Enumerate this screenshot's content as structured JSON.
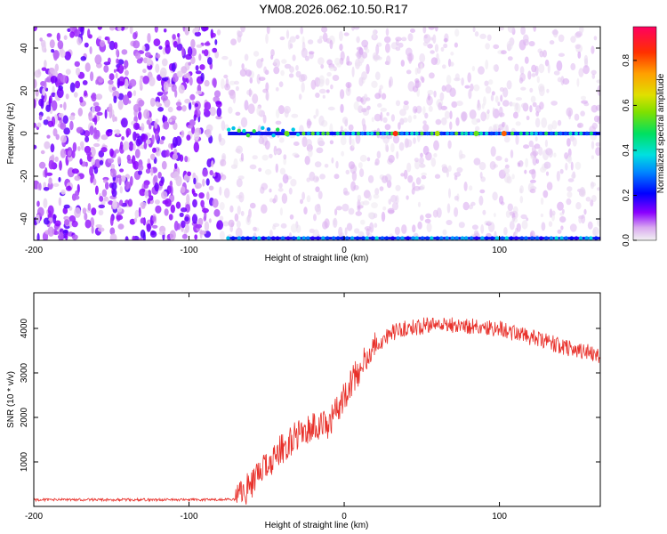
{
  "title": "YM08.2026.062.10.50.R17",
  "chart_data": [
    {
      "type": "heatmap",
      "title": "YM08.2026.062.10.50.R17",
      "xlabel": "Height of straight line (km)",
      "ylabel": "Frequency (Hz)",
      "xlim": [
        -200,
        165
      ],
      "ylim": [
        -50,
        50
      ],
      "xticks": [
        -200,
        -100,
        0,
        100
      ],
      "yticks": [
        -40,
        -20,
        0,
        20,
        40
      ],
      "colorbar": {
        "label": "Normalized spectral amplitude",
        "range": [
          0,
          0.95
        ],
        "ticks": [
          "0.0",
          "0.2",
          "0.4",
          "0.6",
          "0.8"
        ],
        "tick_values": [
          0,
          0.2,
          0.4,
          0.6,
          0.8
        ],
        "colormap": "rainbow"
      },
      "features": [
        {
          "name": "signal line",
          "frequency_hz": 0,
          "x_start_km": -75,
          "x_end_km": 165,
          "amplitude": 0.3
        },
        {
          "name": "aliased line",
          "frequency_hz": -49,
          "x_start_km": -75,
          "x_end_km": 165,
          "amplitude": 0.2
        },
        {
          "name": "noise region",
          "x_start_km": -200,
          "x_end_km": -80,
          "amplitude": 0.05
        }
      ]
    },
    {
      "type": "line",
      "xlabel": "Height of straight line (km)",
      "ylabel": "SNR (10 * v/v)",
      "xlim": [
        -200,
        165
      ],
      "ylim": [
        0,
        4800
      ],
      "xticks": [
        -200,
        -100,
        0,
        100
      ],
      "yticks": [
        1000,
        2000,
        3000,
        4000
      ],
      "color": "#e8302a",
      "series": [
        {
          "name": "SNR",
          "x": [
            -200,
            -150,
            -100,
            -70,
            -60,
            -50,
            -40,
            -30,
            -20,
            -10,
            0,
            10,
            20,
            30,
            40,
            60,
            80,
            100,
            120,
            140,
            165
          ],
          "y": [
            150,
            150,
            150,
            150,
            500,
            900,
            1300,
            1600,
            1800,
            1800,
            2500,
            3100,
            3600,
            3900,
            4000,
            4100,
            4050,
            4000,
            3800,
            3600,
            3400
          ]
        }
      ]
    }
  ]
}
